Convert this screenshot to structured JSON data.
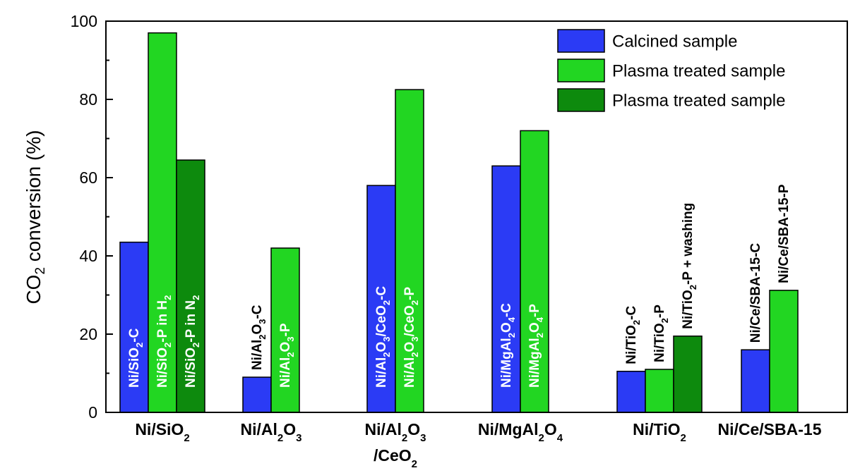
{
  "chart_data": {
    "type": "bar",
    "ylabel": {
      "main": "CO",
      "sub": "2",
      "rest": " conversion (%)"
    },
    "ylim": [
      0,
      100
    ],
    "yticks": [
      "0",
      "20",
      "40",
      "60",
      "80",
      "100"
    ],
    "legend": {
      "placement": "top-right",
      "entries": [
        {
          "label": "Calcined sample",
          "color": "#2b3bf5"
        },
        {
          "label": "Plasma treated sample",
          "color": "#22d622"
        },
        {
          "label": "Plasma treated sample",
          "color": "#0d8a0d"
        }
      ]
    },
    "groups": [
      {
        "category": [
          {
            "t": "Ni/SiO"
          },
          {
            "t": "2",
            "sub": true
          }
        ],
        "bars": [
          {
            "value": 43.5,
            "series": 0,
            "label": [
              {
                "t": "Ni/SiO"
              },
              {
                "t": "2",
                "sub": true
              },
              {
                "t": "-C"
              }
            ]
          },
          {
            "value": 97,
            "series": 1,
            "label": [
              {
                "t": "Ni/SiO"
              },
              {
                "t": "2",
                "sub": true
              },
              {
                "t": "-P in H"
              },
              {
                "t": "2",
                "sub": true
              }
            ]
          },
          {
            "value": 64.5,
            "series": 2,
            "label": [
              {
                "t": "Ni/SiO"
              },
              {
                "t": "2",
                "sub": true
              },
              {
                "t": "-P in N"
              },
              {
                "t": "2",
                "sub": true
              }
            ]
          }
        ]
      },
      {
        "category": [
          {
            "t": "Ni/Al"
          },
          {
            "t": "2",
            "sub": true
          },
          {
            "t": "O"
          },
          {
            "t": "3",
            "sub": true
          }
        ],
        "bars": [
          {
            "value": 9,
            "series": 0,
            "label": [
              {
                "t": "Ni/Al"
              },
              {
                "t": "2",
                "sub": true
              },
              {
                "t": "O"
              },
              {
                "t": "3",
                "sub": true
              },
              {
                "t": "-C"
              }
            ]
          },
          {
            "value": 42,
            "series": 1,
            "label": [
              {
                "t": "Ni/Al"
              },
              {
                "t": "2",
                "sub": true
              },
              {
                "t": "O"
              },
              {
                "t": "3",
                "sub": true
              },
              {
                "t": "-P"
              }
            ]
          }
        ]
      },
      {
        "category": [
          {
            "t": "Ni/Al"
          },
          {
            "t": "2",
            "sub": true
          },
          {
            "t": "O"
          },
          {
            "t": "3",
            "sub": true
          }
        ],
        "category2": [
          {
            "t": "/CeO"
          },
          {
            "t": "2",
            "sub": true
          }
        ],
        "bars": [
          {
            "value": 58,
            "series": 0,
            "label": [
              {
                "t": "Ni/Al"
              },
              {
                "t": "2",
                "sub": true
              },
              {
                "t": "O"
              },
              {
                "t": "3",
                "sub": true
              },
              {
                "t": "/CeO"
              },
              {
                "t": "2",
                "sub": true
              },
              {
                "t": "-C"
              }
            ]
          },
          {
            "value": 82.5,
            "series": 1,
            "label": [
              {
                "t": "Ni/Al"
              },
              {
                "t": "2",
                "sub": true
              },
              {
                "t": "O"
              },
              {
                "t": "3",
                "sub": true
              },
              {
                "t": "/CeO"
              },
              {
                "t": "2",
                "sub": true
              },
              {
                "t": "-P"
              }
            ]
          }
        ]
      },
      {
        "category": [
          {
            "t": "Ni/MgAl"
          },
          {
            "t": "2",
            "sub": true
          },
          {
            "t": "O"
          },
          {
            "t": "4",
            "sub": true
          }
        ],
        "bars": [
          {
            "value": 63,
            "series": 0,
            "label": [
              {
                "t": "Ni/MgAl"
              },
              {
                "t": "2",
                "sub": true
              },
              {
                "t": "O"
              },
              {
                "t": "4",
                "sub": true
              },
              {
                "t": "-C"
              }
            ]
          },
          {
            "value": 72,
            "series": 1,
            "label": [
              {
                "t": "Ni/MgAl"
              },
              {
                "t": "2",
                "sub": true
              },
              {
                "t": "O"
              },
              {
                "t": "4",
                "sub": true
              },
              {
                "t": "-P"
              }
            ]
          }
        ]
      },
      {
        "category": [
          {
            "t": "Ni/TiO"
          },
          {
            "t": "2",
            "sub": true
          }
        ],
        "bars": [
          {
            "value": 10.5,
            "series": 0,
            "label": [
              {
                "t": "Ni/TiO"
              },
              {
                "t": "2",
                "sub": true
              },
              {
                "t": "-C"
              }
            ]
          },
          {
            "value": 11,
            "series": 1,
            "label": [
              {
                "t": "Ni/TiO"
              },
              {
                "t": "2",
                "sub": true
              },
              {
                "t": "-P"
              }
            ]
          },
          {
            "value": 19.5,
            "series": 2,
            "label": [
              {
                "t": "Ni/TiO"
              },
              {
                "t": "2",
                "sub": true
              },
              {
                "t": "-P + washing"
              }
            ]
          }
        ]
      },
      {
        "category": [
          {
            "t": "Ni/Ce/SBA-15"
          }
        ],
        "bars": [
          {
            "value": 16,
            "series": 0,
            "label": [
              {
                "t": "Ni/Ce/SBA-15-C"
              }
            ]
          },
          {
            "value": 31.2,
            "series": 1,
            "label": [
              {
                "t": "Ni/Ce/SBA-15-P"
              }
            ]
          }
        ]
      }
    ]
  }
}
